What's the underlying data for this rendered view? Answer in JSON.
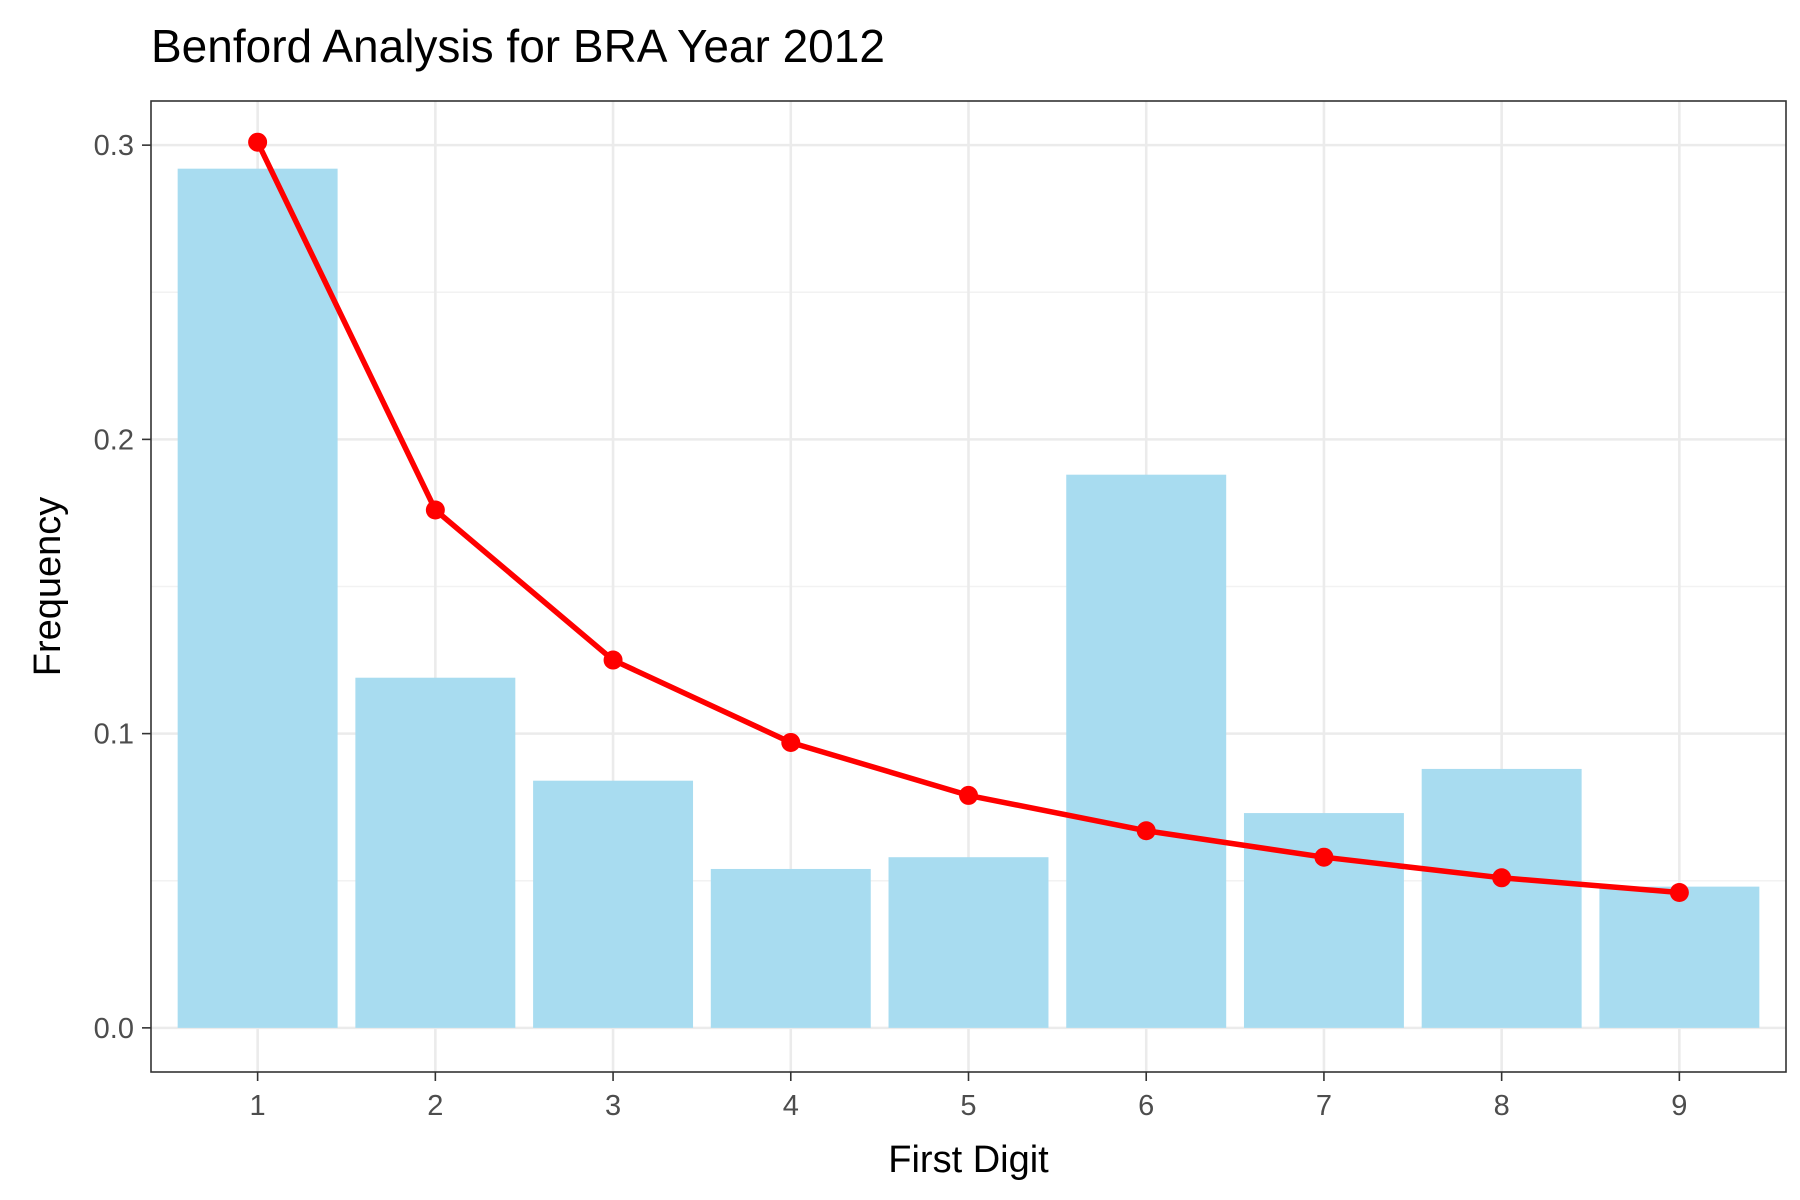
{
  "chart_data": {
    "type": "bar",
    "title": "Benford Analysis for BRA Year 2012",
    "xlabel": "First Digit",
    "ylabel": "Frequency",
    "categories": [
      "1",
      "2",
      "3",
      "4",
      "5",
      "6",
      "7",
      "8",
      "9"
    ],
    "x_ticks": [
      "1",
      "2",
      "3",
      "4",
      "5",
      "6",
      "7",
      "8",
      "9"
    ],
    "y_ticks": [
      "0.0",
      "0.1",
      "0.2",
      "0.3"
    ],
    "ylim": [
      -0.015,
      0.315
    ],
    "grid": true,
    "legend": "none",
    "series": [
      {
        "type": "bar",
        "color": "#a8dcf0",
        "values": [
          0.292,
          0.119,
          0.084,
          0.054,
          0.058,
          0.188,
          0.073,
          0.088,
          0.048
        ]
      },
      {
        "type": "line",
        "color": "#ff0000",
        "values": [
          0.301,
          0.176,
          0.125,
          0.097,
          0.079,
          0.067,
          0.058,
          0.051,
          0.046
        ]
      }
    ]
  }
}
